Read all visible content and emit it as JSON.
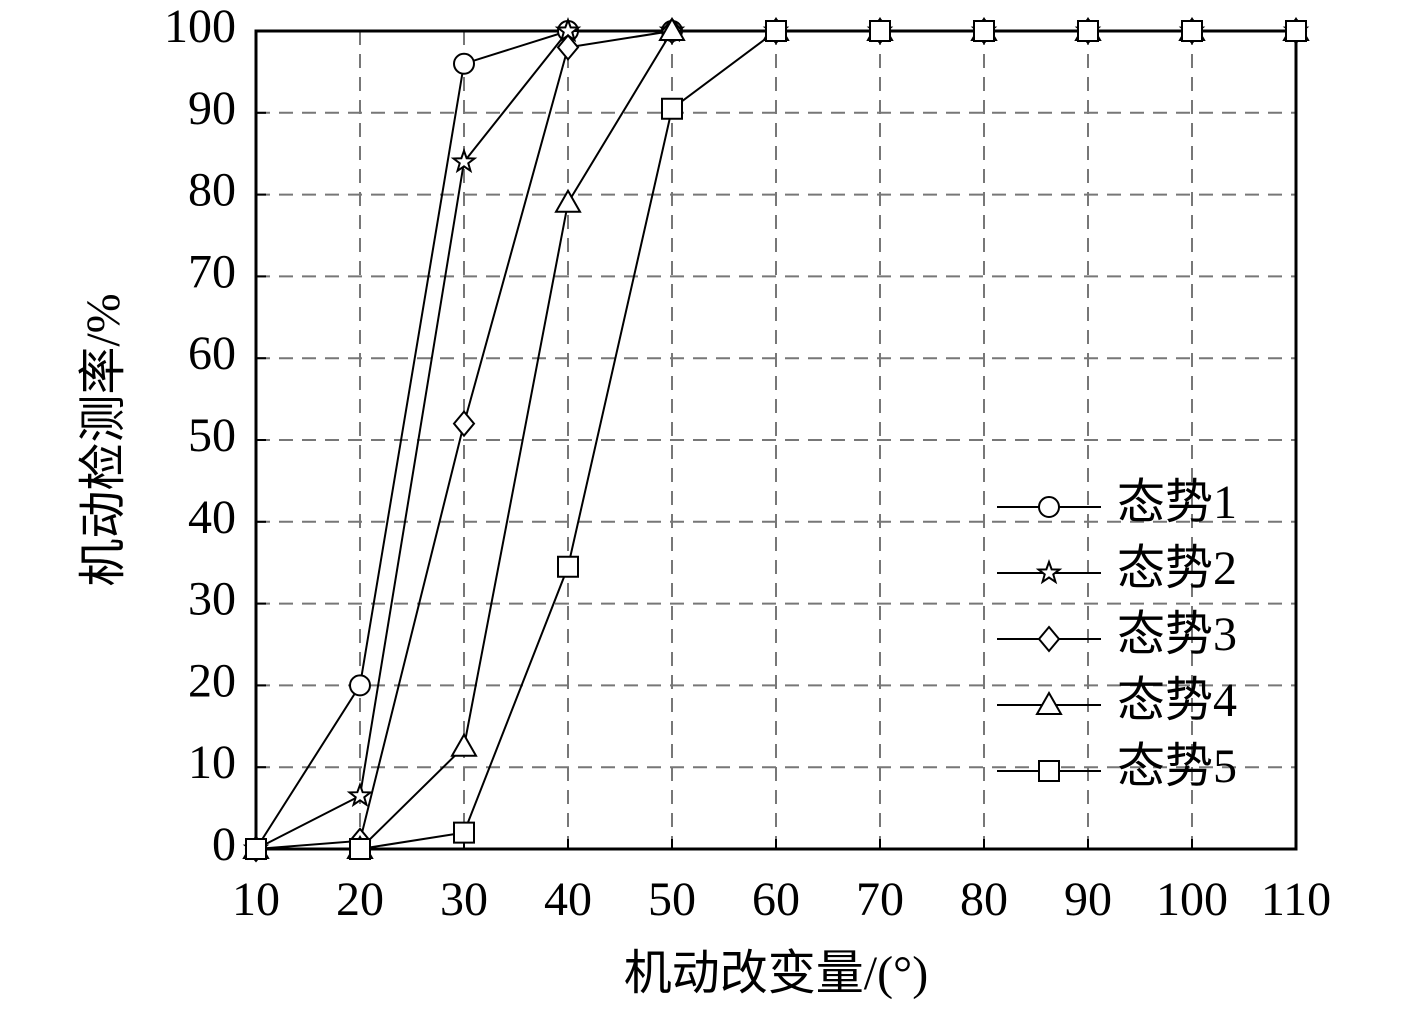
{
  "chart_data": {
    "type": "line",
    "xlabel": "机动改变量/(°)",
    "ylabel": "机动检测率/%",
    "x": [
      10,
      20,
      30,
      40,
      50,
      60,
      70,
      80,
      90,
      100,
      110
    ],
    "series": [
      {
        "name": "态势1",
        "color": "#000000",
        "marker": "circle",
        "values": [
          0,
          20,
          96,
          100,
          100,
          100,
          100,
          100,
          100,
          100,
          100
        ]
      },
      {
        "name": "态势2",
        "color": "#000000",
        "marker": "star",
        "values": [
          0,
          6.5,
          84,
          100,
          100,
          100,
          100,
          100,
          100,
          100,
          100
        ]
      },
      {
        "name": "态势3",
        "color": "#000000",
        "marker": "diamond",
        "values": [
          0,
          1,
          52,
          98,
          100,
          100,
          100,
          100,
          100,
          100,
          100
        ]
      },
      {
        "name": "态势4",
        "color": "#000000",
        "marker": "triangle",
        "values": [
          0,
          0,
          12.5,
          79,
          100,
          100,
          100,
          100,
          100,
          100,
          100
        ]
      },
      {
        "name": "态势5",
        "color": "#000000",
        "marker": "square",
        "values": [
          0,
          0,
          2,
          34.5,
          90.5,
          100,
          100,
          100,
          100,
          100,
          100
        ]
      }
    ],
    "xlim": [
      10,
      110
    ],
    "xticks": [
      10,
      20,
      30,
      40,
      50,
      60,
      70,
      80,
      90,
      100,
      110
    ],
    "ylim": [
      0,
      100
    ],
    "yticks": [
      0,
      10,
      20,
      30,
      40,
      50,
      60,
      70,
      80,
      90,
      100
    ],
    "grid": true,
    "legend": "center right"
  }
}
